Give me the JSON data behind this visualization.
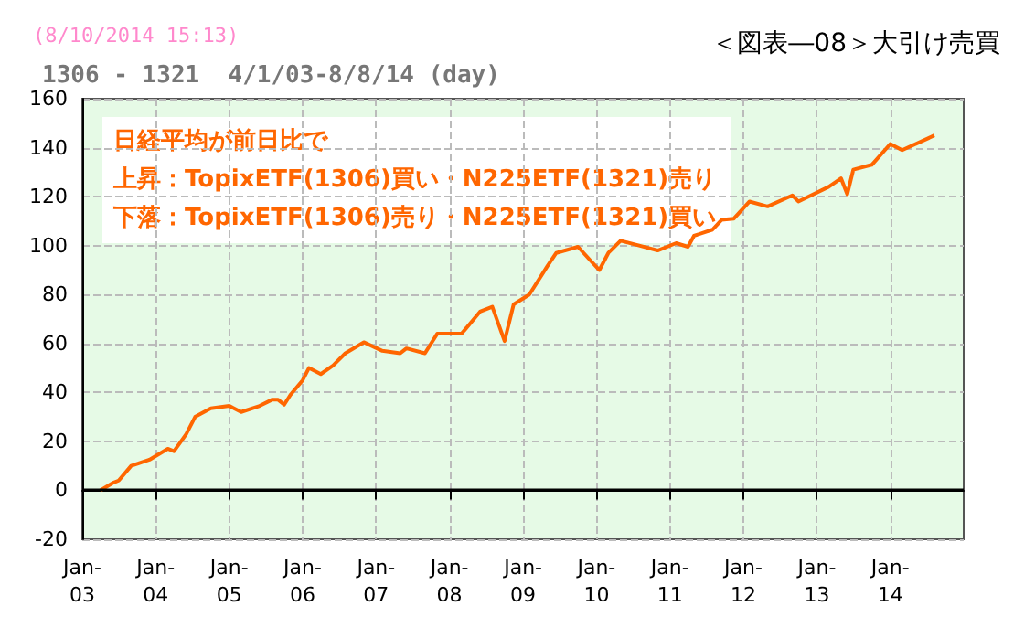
{
  "chart_data": {
    "type": "line",
    "title": "＜図表―08＞大引け売買",
    "subtitle": "1306 - 1321  4/1/03-8/8/14 (day)",
    "annotations": [
      "(8/10/2014 15:13)",
      "日経平均が前日比で",
      "上昇：TopixETF(1306)買い・N225ETF(1321)売り",
      "下落：TopixETF(1306)売り・N225ETF(1321)買い"
    ],
    "series": [
      {
        "color": "#ff6600",
        "x": [
          "2003-04-01",
          "2003-06-01",
          "2003-07-01",
          "2003-09-01",
          "2003-12-01",
          "2004-03-01",
          "2004-04-01",
          "2004-06-01",
          "2004-07-15",
          "2004-10-01",
          "2005-01-01",
          "2005-03-01",
          "2005-06-01",
          "2005-08-01",
          "2005-09-01",
          "2005-10-01",
          "2005-11-01",
          "2006-01-01",
          "2006-02-01",
          "2006-04-01",
          "2006-06-01",
          "2006-08-01",
          "2006-11-01",
          "2007-02-01",
          "2007-05-01",
          "2007-06-01",
          "2007-09-01",
          "2007-11-01",
          "2008-03-01",
          "2008-06-01",
          "2008-08-01",
          "2008-10-01",
          "2008-11-15",
          "2009-02-01",
          "2009-05-01",
          "2009-06-15",
          "2009-10-01",
          "2009-12-01",
          "2010-01-15",
          "2010-03-01",
          "2010-05-01",
          "2010-08-01",
          "2010-11-01",
          "2011-02-01",
          "2011-04-01",
          "2011-05-01",
          "2011-08-01",
          "2011-09-15",
          "2011-11-15",
          "2012-02-01",
          "2012-05-01",
          "2012-09-01",
          "2012-10-01",
          "2013-03-01",
          "2013-05-01",
          "2013-06-01",
          "2013-07-01",
          "2013-10-01",
          "2014-01-01",
          "2014-03-01",
          "2014-08-08"
        ],
        "values": [
          0,
          3,
          4,
          10,
          12.5,
          17,
          16,
          23,
          30,
          33.5,
          34.5,
          32,
          34.5,
          37,
          37,
          35,
          39,
          45,
          50,
          47.5,
          51,
          56,
          60.5,
          57,
          56,
          58,
          56,
          64,
          64,
          73,
          75,
          61,
          76,
          80,
          91.5,
          97,
          99.5,
          94,
          90,
          97,
          102,
          100,
          98,
          101,
          99.5,
          104,
          106.5,
          110.5,
          111,
          118,
          116,
          120.5,
          118,
          124,
          127.5,
          121,
          131,
          133,
          141.5,
          139,
          145
        ]
      }
    ],
    "xlim": [
      "2003-01-01",
      "2015-01-01"
    ],
    "xticks": [
      {
        "value": "2003-01-01",
        "label": "Jan-\n03"
      },
      {
        "value": "2004-01-01",
        "label": "Jan-\n04"
      },
      {
        "value": "2005-01-01",
        "label": "Jan-\n05"
      },
      {
        "value": "2006-01-01",
        "label": "Jan-\n06"
      },
      {
        "value": "2007-01-01",
        "label": "Jan-\n07"
      },
      {
        "value": "2008-01-01",
        "label": "Jan-\n08"
      },
      {
        "value": "2009-01-01",
        "label": "Jan-\n09"
      },
      {
        "value": "2010-01-01",
        "label": "Jan-\n10"
      },
      {
        "value": "2011-01-01",
        "label": "Jan-\n11"
      },
      {
        "value": "2012-01-01",
        "label": "Jan-\n12"
      },
      {
        "value": "2013-01-01",
        "label": "Jan-\n13"
      },
      {
        "value": "2014-01-01",
        "label": "Jan-\n14"
      }
    ],
    "ylim": [
      -20,
      160
    ],
    "yticks": [
      -20,
      0,
      20,
      40,
      60,
      80,
      100,
      120,
      140,
      160
    ],
    "ref_lines": [
      {
        "axis": "y",
        "value": 0,
        "color": "#000000"
      }
    ],
    "grid": true,
    "marker": "none",
    "line_style": "solid"
  }
}
